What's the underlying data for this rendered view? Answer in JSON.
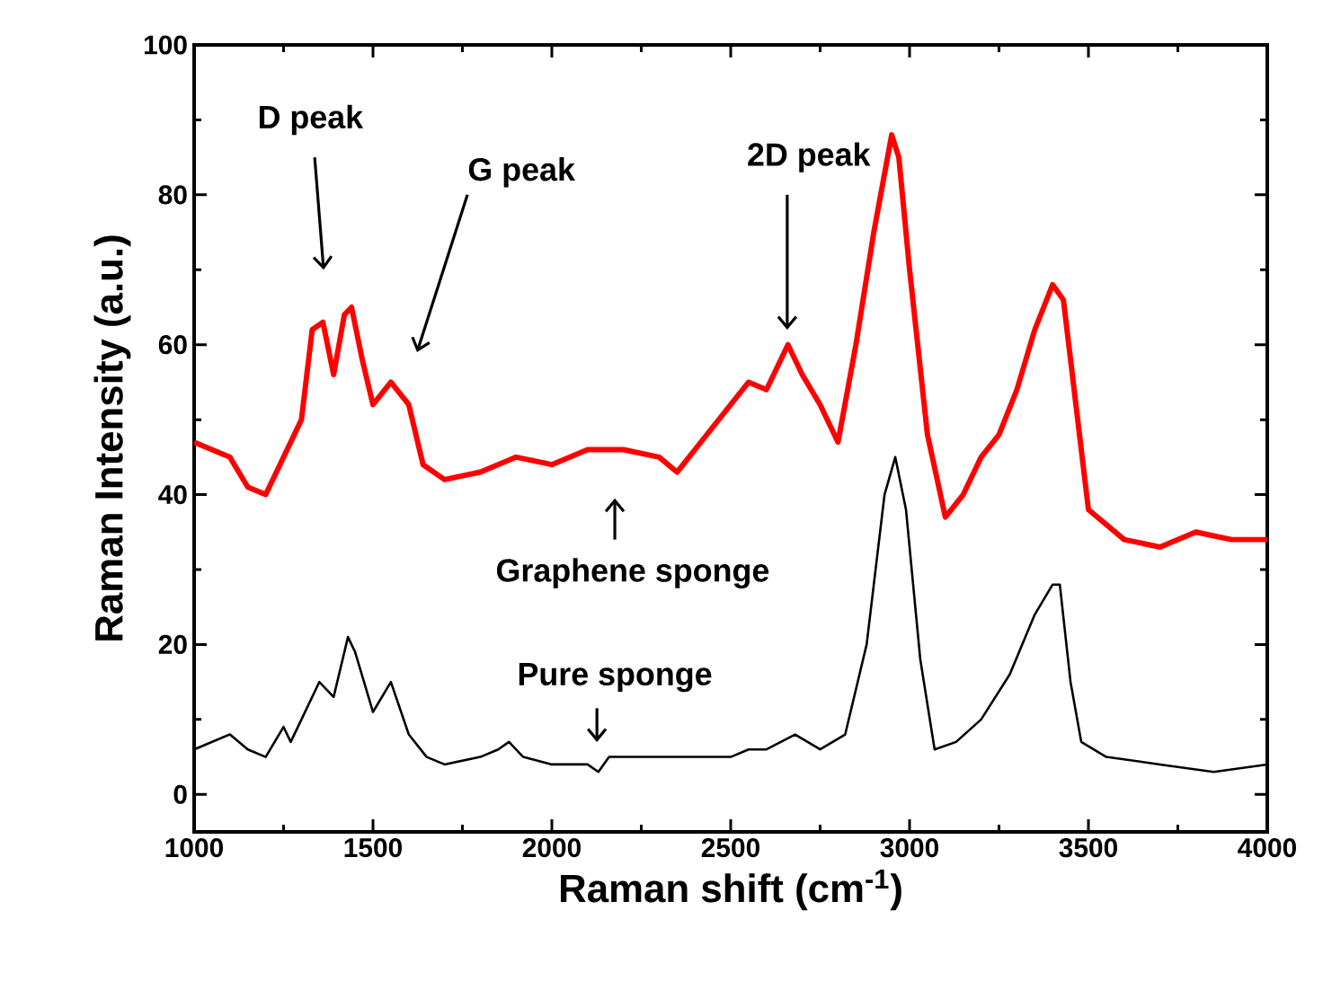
{
  "chart_data": {
    "type": "line",
    "xlabel": "Raman shift (cm$^{-1}$)",
    "ylabel": "Raman Intensity (a.u.)",
    "xlim": [
      1000,
      4000
    ],
    "xticks": [
      1000,
      1500,
      2000,
      2500,
      3000,
      3500,
      4000
    ],
    "ylim": [
      -5,
      100
    ],
    "yticks": [
      0,
      20,
      40,
      60,
      80,
      100
    ],
    "grid": false,
    "marker": "none",
    "line_style": "solid",
    "series": [
      {
        "color": "#ff0000",
        "x": [
          1000,
          1050,
          1100,
          1150,
          1200,
          1250,
          1300,
          1330,
          1360,
          1390,
          1420,
          1440,
          1470,
          1500,
          1550,
          1600,
          1640,
          1700,
          1800,
          1900,
          2000,
          2100,
          2200,
          2300,
          2350,
          2400,
          2500,
          2550,
          2600,
          2660,
          2700,
          2750,
          2800,
          2850,
          2900,
          2950,
          2970,
          3000,
          3050,
          3100,
          3150,
          3200,
          3250,
          3300,
          3350,
          3400,
          3430,
          3470,
          3500,
          3600,
          3700,
          3800,
          3900,
          4000
        ],
        "values": [
          47,
          46,
          45,
          41,
          40,
          45,
          50,
          62,
          63,
          56,
          64,
          65,
          58,
          52,
          55,
          52,
          44,
          42,
          43,
          45,
          44,
          46,
          46,
          45,
          43,
          46,
          52,
          55,
          54,
          60,
          56,
          52,
          47,
          60,
          75,
          88,
          85,
          70,
          48,
          37,
          40,
          45,
          48,
          54,
          62,
          68,
          66,
          50,
          38,
          34,
          33,
          35,
          34,
          34
        ]
      },
      {
        "color": "#000000",
        "x": [
          1000,
          1050,
          1100,
          1150,
          1200,
          1250,
          1270,
          1300,
          1350,
          1390,
          1430,
          1450,
          1500,
          1550,
          1600,
          1650,
          1700,
          1800,
          1850,
          1880,
          1920,
          2000,
          2100,
          2130,
          2160,
          2300,
          2500,
          2550,
          2600,
          2680,
          2750,
          2820,
          2880,
          2930,
          2960,
          2990,
          3030,
          3070,
          3130,
          3200,
          3280,
          3350,
          3400,
          3420,
          3450,
          3480,
          3550,
          3700,
          3850,
          4000
        ],
        "values": [
          6,
          7,
          8,
          6,
          5,
          9,
          7,
          10,
          15,
          13,
          21,
          19,
          11,
          15,
          8,
          5,
          4,
          5,
          6,
          7,
          5,
          4,
          4,
          3,
          5,
          5,
          5,
          6,
          6,
          8,
          6,
          8,
          20,
          40,
          45,
          38,
          18,
          6,
          7,
          10,
          16,
          24,
          28,
          28,
          15,
          7,
          5,
          4,
          3,
          4
        ]
      }
    ],
    "annotations": [
      "D peak",
      "G peak",
      "2D peak",
      "Graphene sponge",
      "Pure sponge"
    ]
  }
}
